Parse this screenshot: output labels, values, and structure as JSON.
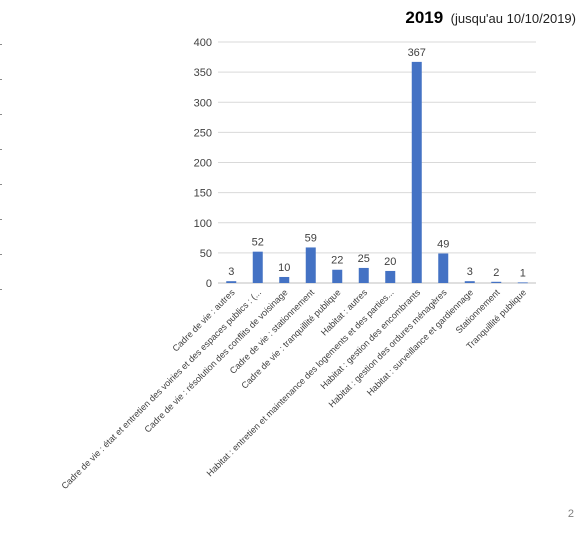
{
  "chart_data": {
    "type": "bar",
    "title_year": "2019",
    "title_note": "(jusqu'au 10/10/2019)",
    "xlabel": "",
    "ylabel": "",
    "ylim": [
      0,
      400
    ],
    "yticks": [
      0,
      50,
      100,
      150,
      200,
      250,
      300,
      350,
      400
    ],
    "grid": true,
    "legend": "none",
    "bar_color": "#4472c4",
    "categories": [
      "Cadre de vie : autres",
      "Cadre de vie : état et entretien des voiries et des espaces publics : (...",
      "Cadre de vie : résolution des conflits de voisinage",
      "Cadre de vie : stationnement",
      "Cadre de vie : tranquillité publique",
      "Habitat : autres",
      "Habitat : entretien et maintenance des logements et des parties...",
      "Habitat : gestion des encombrants",
      "Habitat : gestion des ordures ménagères",
      "Habitat : surveillance et gardiennage",
      "Stationnement",
      "Tranquillité publique"
    ],
    "values": [
      3,
      52,
      10,
      59,
      22,
      25,
      20,
      367,
      49,
      3,
      2,
      1
    ]
  },
  "page_number": "2"
}
